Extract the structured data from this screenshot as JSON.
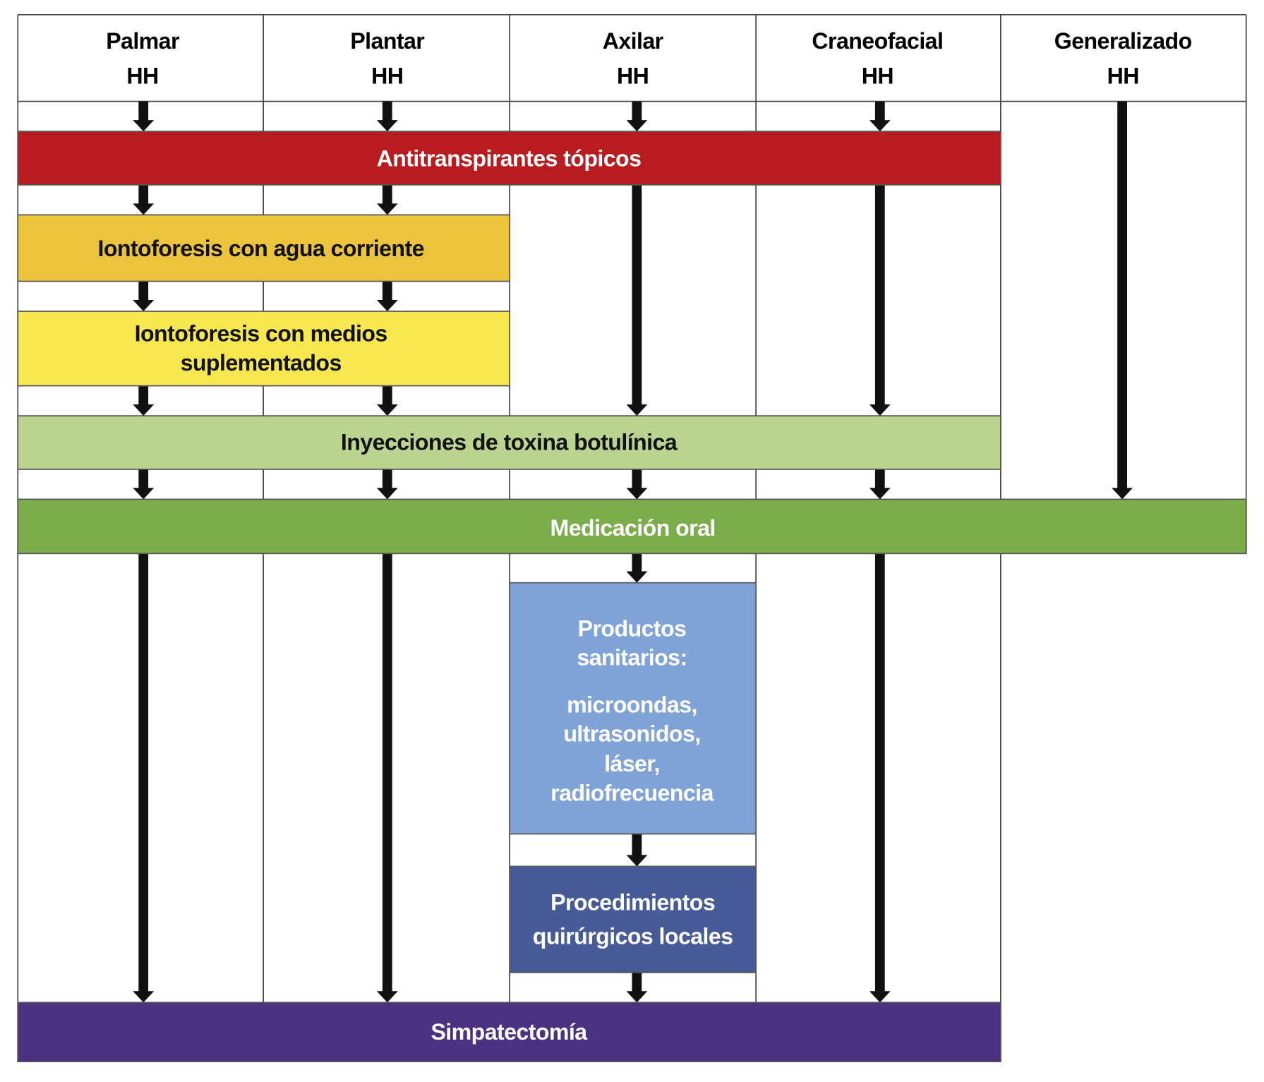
{
  "columns": [
    {
      "line1": "Palmar",
      "line2": "HH"
    },
    {
      "line1": "Plantar",
      "line2": "HH"
    },
    {
      "line1": "Axilar",
      "line2": "HH"
    },
    {
      "line1": "Craneofacial",
      "line2": "HH"
    },
    {
      "line1": "Generalizado",
      "line2": "HH"
    }
  ],
  "steps": {
    "antitranspirantes": {
      "label": "Antitranspirantes tópicos",
      "color": "#b91c1f",
      "text_color": "#ffffff"
    },
    "iontoforesis_agua": {
      "label": "Iontoforesis con agua corriente",
      "color": "#ebc43b",
      "text_color": "#111111"
    },
    "iontoforesis_medios": {
      "line1": "Iontoforesis con medios",
      "line2": "suplementados",
      "color": "#f6e84e",
      "text_color": "#111111"
    },
    "toxina": {
      "label": "Inyecciones de toxina botulínica",
      "color": "#bbd490",
      "text_color": "#111111"
    },
    "medicacion": {
      "label": "Medicación oral",
      "color": "#7bad4b",
      "text_color": "#ffffff"
    },
    "productos": {
      "line1": "Productos",
      "line2": "sanitarios:",
      "line3": "microondas,",
      "line4": "ultrasonidos,",
      "line5": "láser,",
      "line6": "radiofrecuencia",
      "color": "#7fa3d6",
      "text_color": "#ffffff"
    },
    "procedimientos": {
      "line1": "Procedimientos",
      "line2": "quirúrgicos locales",
      "color": "#465b97",
      "text_color": "#ffffff"
    },
    "simpatectomia": {
      "label": "Simpatectomía",
      "color": "#4b3182",
      "text_color": "#ffffff"
    }
  }
}
